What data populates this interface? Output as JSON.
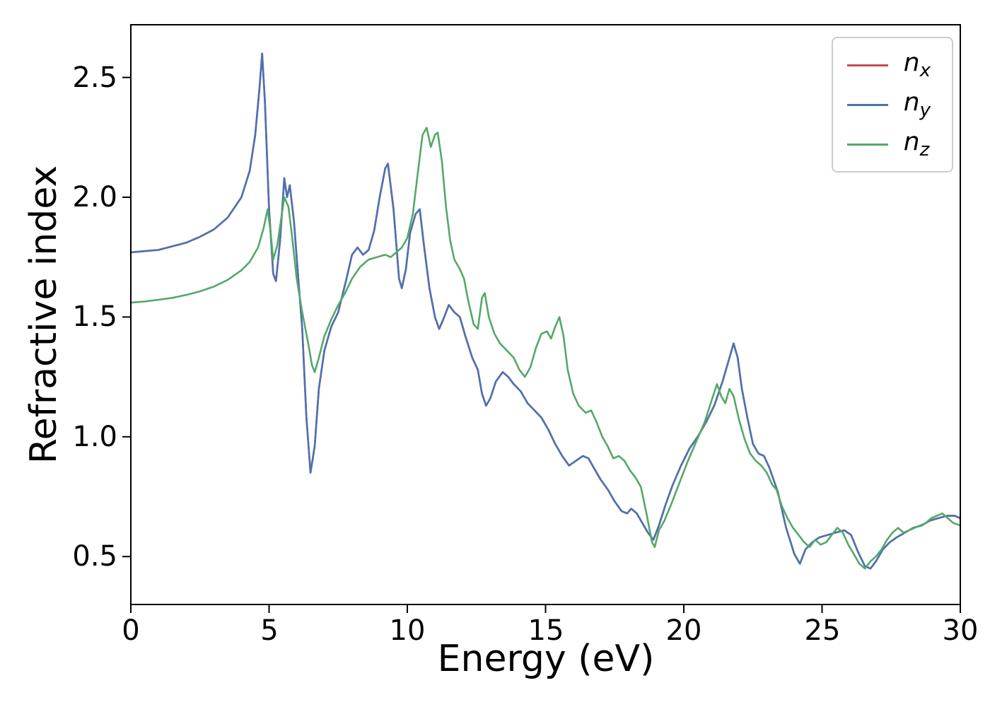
{
  "chart_data": {
    "type": "line",
    "title": "",
    "xlabel": "Energy (eV)",
    "ylabel": "Refractive index",
    "xlim": [
      0,
      30
    ],
    "ylim": [
      0.3,
      2.72
    ],
    "x_ticks": [
      0,
      5,
      10,
      15,
      20,
      25,
      30
    ],
    "x_tick_labels": [
      "0",
      "5",
      "10",
      "15",
      "20",
      "25",
      "30"
    ],
    "y_ticks": [
      0.5,
      1.0,
      1.5,
      2.0,
      2.5
    ],
    "y_tick_labels": [
      "0.5",
      "1.0",
      "1.5",
      "2.0",
      "2.5"
    ],
    "grid": false,
    "legend_position": "upper right",
    "series": [
      {
        "name": "n_x",
        "label_main": "n",
        "label_sub": "x",
        "color": "#c94a4e",
        "coincides_with": "n_y",
        "points": []
      },
      {
        "name": "n_y",
        "label_main": "n",
        "label_sub": "y",
        "color": "#4c72b0",
        "points": [
          [
            0,
            1.77
          ],
          [
            0.5,
            1.775
          ],
          [
            1,
            1.78
          ],
          [
            1.5,
            1.795
          ],
          [
            2,
            1.81
          ],
          [
            2.5,
            1.835
          ],
          [
            3,
            1.865
          ],
          [
            3.5,
            1.915
          ],
          [
            4,
            2.0
          ],
          [
            4.3,
            2.11
          ],
          [
            4.5,
            2.26
          ],
          [
            4.65,
            2.45
          ],
          [
            4.75,
            2.6
          ],
          [
            4.85,
            2.4
          ],
          [
            5.0,
            1.95
          ],
          [
            5.15,
            1.68
          ],
          [
            5.25,
            1.65
          ],
          [
            5.4,
            1.82
          ],
          [
            5.55,
            2.08
          ],
          [
            5.65,
            2.0
          ],
          [
            5.75,
            2.05
          ],
          [
            5.9,
            1.9
          ],
          [
            6.05,
            1.67
          ],
          [
            6.2,
            1.45
          ],
          [
            6.35,
            1.08
          ],
          [
            6.5,
            0.85
          ],
          [
            6.65,
            0.96
          ],
          [
            6.8,
            1.2
          ],
          [
            7.0,
            1.36
          ],
          [
            7.25,
            1.46
          ],
          [
            7.5,
            1.52
          ],
          [
            7.8,
            1.66
          ],
          [
            8.0,
            1.76
          ],
          [
            8.2,
            1.79
          ],
          [
            8.4,
            1.76
          ],
          [
            8.6,
            1.78
          ],
          [
            8.8,
            1.86
          ],
          [
            9.0,
            2.0
          ],
          [
            9.2,
            2.12
          ],
          [
            9.3,
            2.14
          ],
          [
            9.5,
            1.95
          ],
          [
            9.7,
            1.66
          ],
          [
            9.8,
            1.62
          ],
          [
            9.95,
            1.7
          ],
          [
            10.1,
            1.85
          ],
          [
            10.3,
            1.93
          ],
          [
            10.45,
            1.95
          ],
          [
            10.6,
            1.8
          ],
          [
            10.8,
            1.62
          ],
          [
            11.0,
            1.5
          ],
          [
            11.15,
            1.45
          ],
          [
            11.3,
            1.49
          ],
          [
            11.5,
            1.55
          ],
          [
            11.7,
            1.52
          ],
          [
            11.9,
            1.5
          ],
          [
            12.1,
            1.42
          ],
          [
            12.35,
            1.33
          ],
          [
            12.55,
            1.28
          ],
          [
            12.7,
            1.18
          ],
          [
            12.85,
            1.13
          ],
          [
            13.0,
            1.16
          ],
          [
            13.2,
            1.23
          ],
          [
            13.45,
            1.27
          ],
          [
            13.65,
            1.25
          ],
          [
            13.85,
            1.22
          ],
          [
            14.1,
            1.19
          ],
          [
            14.35,
            1.14
          ],
          [
            14.6,
            1.11
          ],
          [
            14.85,
            1.08
          ],
          [
            15.1,
            1.03
          ],
          [
            15.35,
            0.97
          ],
          [
            15.6,
            0.92
          ],
          [
            15.85,
            0.88
          ],
          [
            16.1,
            0.9
          ],
          [
            16.35,
            0.92
          ],
          [
            16.55,
            0.91
          ],
          [
            16.75,
            0.87
          ],
          [
            17.0,
            0.82
          ],
          [
            17.25,
            0.78
          ],
          [
            17.5,
            0.73
          ],
          [
            17.75,
            0.69
          ],
          [
            17.95,
            0.68
          ],
          [
            18.1,
            0.7
          ],
          [
            18.3,
            0.68
          ],
          [
            18.5,
            0.64
          ],
          [
            18.7,
            0.6
          ],
          [
            18.9,
            0.57
          ],
          [
            19.1,
            0.63
          ],
          [
            19.35,
            0.72
          ],
          [
            19.6,
            0.8
          ],
          [
            19.9,
            0.88
          ],
          [
            20.2,
            0.95
          ],
          [
            20.5,
            1.0
          ],
          [
            20.8,
            1.06
          ],
          [
            21.1,
            1.13
          ],
          [
            21.4,
            1.23
          ],
          [
            21.6,
            1.31
          ],
          [
            21.8,
            1.39
          ],
          [
            21.95,
            1.33
          ],
          [
            22.1,
            1.2
          ],
          [
            22.3,
            1.08
          ],
          [
            22.5,
            0.97
          ],
          [
            22.7,
            0.93
          ],
          [
            22.9,
            0.92
          ],
          [
            23.1,
            0.87
          ],
          [
            23.4,
            0.77
          ],
          [
            23.7,
            0.62
          ],
          [
            24.0,
            0.51
          ],
          [
            24.2,
            0.47
          ],
          [
            24.4,
            0.53
          ],
          [
            24.65,
            0.56
          ],
          [
            24.9,
            0.58
          ],
          [
            25.2,
            0.59
          ],
          [
            25.5,
            0.6
          ],
          [
            25.8,
            0.61
          ],
          [
            26.05,
            0.59
          ],
          [
            26.3,
            0.52
          ],
          [
            26.55,
            0.46
          ],
          [
            26.75,
            0.45
          ],
          [
            26.95,
            0.48
          ],
          [
            27.2,
            0.53
          ],
          [
            27.45,
            0.56
          ],
          [
            27.7,
            0.58
          ],
          [
            28.0,
            0.6
          ],
          [
            28.3,
            0.62
          ],
          [
            28.6,
            0.63
          ],
          [
            28.9,
            0.65
          ],
          [
            29.2,
            0.66
          ],
          [
            29.5,
            0.67
          ],
          [
            29.8,
            0.67
          ],
          [
            30,
            0.66
          ]
        ]
      },
      {
        "name": "n_z",
        "label_main": "n",
        "label_sub": "z",
        "color": "#55a868",
        "points": [
          [
            0,
            1.56
          ],
          [
            0.5,
            1.565
          ],
          [
            1,
            1.572
          ],
          [
            1.5,
            1.58
          ],
          [
            2,
            1.592
          ],
          [
            2.5,
            1.607
          ],
          [
            3,
            1.627
          ],
          [
            3.5,
            1.655
          ],
          [
            4,
            1.695
          ],
          [
            4.3,
            1.73
          ],
          [
            4.6,
            1.79
          ],
          [
            4.8,
            1.87
          ],
          [
            4.95,
            1.95
          ],
          [
            5.05,
            1.86
          ],
          [
            5.15,
            1.74
          ],
          [
            5.3,
            1.8
          ],
          [
            5.45,
            1.92
          ],
          [
            5.55,
            2.0
          ],
          [
            5.7,
            1.96
          ],
          [
            5.85,
            1.82
          ],
          [
            6.0,
            1.66
          ],
          [
            6.2,
            1.52
          ],
          [
            6.4,
            1.4
          ],
          [
            6.55,
            1.3
          ],
          [
            6.65,
            1.27
          ],
          [
            6.8,
            1.33
          ],
          [
            7.0,
            1.42
          ],
          [
            7.25,
            1.49
          ],
          [
            7.5,
            1.55
          ],
          [
            7.75,
            1.6
          ],
          [
            8.0,
            1.66
          ],
          [
            8.3,
            1.71
          ],
          [
            8.6,
            1.74
          ],
          [
            8.9,
            1.75
          ],
          [
            9.2,
            1.76
          ],
          [
            9.4,
            1.75
          ],
          [
            9.6,
            1.77
          ],
          [
            9.8,
            1.79
          ],
          [
            10.0,
            1.83
          ],
          [
            10.2,
            1.93
          ],
          [
            10.4,
            2.12
          ],
          [
            10.55,
            2.26
          ],
          [
            10.7,
            2.29
          ],
          [
            10.85,
            2.21
          ],
          [
            11.0,
            2.26
          ],
          [
            11.1,
            2.27
          ],
          [
            11.25,
            2.15
          ],
          [
            11.4,
            1.96
          ],
          [
            11.55,
            1.82
          ],
          [
            11.7,
            1.74
          ],
          [
            11.9,
            1.7
          ],
          [
            12.05,
            1.66
          ],
          [
            12.2,
            1.57
          ],
          [
            12.4,
            1.47
          ],
          [
            12.55,
            1.45
          ],
          [
            12.7,
            1.58
          ],
          [
            12.8,
            1.6
          ],
          [
            12.95,
            1.5
          ],
          [
            13.15,
            1.43
          ],
          [
            13.35,
            1.39
          ],
          [
            13.6,
            1.36
          ],
          [
            13.85,
            1.33
          ],
          [
            14.05,
            1.28
          ],
          [
            14.25,
            1.25
          ],
          [
            14.45,
            1.29
          ],
          [
            14.65,
            1.37
          ],
          [
            14.85,
            1.43
          ],
          [
            15.05,
            1.44
          ],
          [
            15.2,
            1.41
          ],
          [
            15.35,
            1.46
          ],
          [
            15.5,
            1.5
          ],
          [
            15.65,
            1.42
          ],
          [
            15.8,
            1.28
          ],
          [
            16.0,
            1.18
          ],
          [
            16.2,
            1.13
          ],
          [
            16.45,
            1.1
          ],
          [
            16.65,
            1.11
          ],
          [
            16.85,
            1.06
          ],
          [
            17.05,
            1.0
          ],
          [
            17.25,
            0.96
          ],
          [
            17.45,
            0.91
          ],
          [
            17.65,
            0.92
          ],
          [
            17.85,
            0.9
          ],
          [
            18.05,
            0.86
          ],
          [
            18.25,
            0.83
          ],
          [
            18.45,
            0.79
          ],
          [
            18.65,
            0.68
          ],
          [
            18.85,
            0.56
          ],
          [
            18.95,
            0.54
          ],
          [
            19.1,
            0.61
          ],
          [
            19.3,
            0.65
          ],
          [
            19.55,
            0.72
          ],
          [
            19.85,
            0.81
          ],
          [
            20.15,
            0.9
          ],
          [
            20.45,
            0.98
          ],
          [
            20.75,
            1.06
          ],
          [
            21.0,
            1.15
          ],
          [
            21.2,
            1.22
          ],
          [
            21.35,
            1.17
          ],
          [
            21.5,
            1.14
          ],
          [
            21.65,
            1.2
          ],
          [
            21.8,
            1.17
          ],
          [
            22.0,
            1.07
          ],
          [
            22.2,
            0.99
          ],
          [
            22.4,
            0.93
          ],
          [
            22.6,
            0.9
          ],
          [
            22.8,
            0.88
          ],
          [
            23.0,
            0.85
          ],
          [
            23.2,
            0.8
          ],
          [
            23.35,
            0.78
          ],
          [
            23.55,
            0.71
          ],
          [
            23.75,
            0.66
          ],
          [
            23.95,
            0.62
          ],
          [
            24.15,
            0.59
          ],
          [
            24.35,
            0.56
          ],
          [
            24.55,
            0.54
          ],
          [
            24.75,
            0.57
          ],
          [
            24.95,
            0.55
          ],
          [
            25.15,
            0.56
          ],
          [
            25.35,
            0.59
          ],
          [
            25.55,
            0.62
          ],
          [
            25.75,
            0.6
          ],
          [
            25.95,
            0.55
          ],
          [
            26.15,
            0.51
          ],
          [
            26.35,
            0.47
          ],
          [
            26.55,
            0.45
          ],
          [
            26.75,
            0.48
          ],
          [
            26.95,
            0.5
          ],
          [
            27.15,
            0.53
          ],
          [
            27.35,
            0.57
          ],
          [
            27.55,
            0.6
          ],
          [
            27.75,
            0.62
          ],
          [
            27.95,
            0.6
          ],
          [
            28.15,
            0.61
          ],
          [
            28.35,
            0.62
          ],
          [
            28.55,
            0.63
          ],
          [
            28.75,
            0.64
          ],
          [
            28.95,
            0.66
          ],
          [
            29.15,
            0.67
          ],
          [
            29.35,
            0.68
          ],
          [
            29.55,
            0.66
          ],
          [
            29.75,
            0.64
          ],
          [
            30,
            0.63
          ]
        ]
      }
    ]
  }
}
